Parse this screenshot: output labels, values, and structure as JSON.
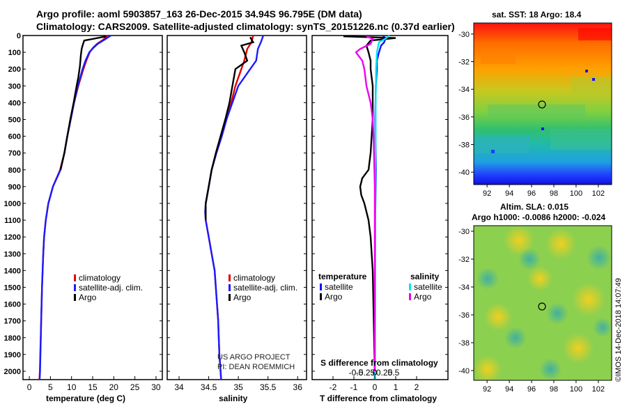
{
  "header": {
    "line1": "Argo profile: aoml 5903857_163 26-Dec-2015 34.94S 96.795E (DM data)",
    "line2": "Climatology: CARS2009. Satellite-adjusted climatology: synTS_20151226.nc (0.37d earlier)"
  },
  "colors": {
    "climatology": "#e00000",
    "satellite": "#1a1aff",
    "argo": "#000000",
    "sat_t": "#1010ff",
    "argo_t": "#000000",
    "sat_s": "#00e5ee",
    "argo_s": "#ee00ee"
  },
  "depth_axis": {
    "ylim": [
      0,
      2050
    ],
    "ticks": [
      0,
      100,
      200,
      300,
      400,
      500,
      600,
      700,
      800,
      900,
      1000,
      1100,
      1200,
      1300,
      1400,
      1500,
      1600,
      1700,
      1800,
      1900,
      2000
    ]
  },
  "panels": {
    "temperature": {
      "xlabel": "temperature (deg C)",
      "xlim": [
        -1.5,
        31.5
      ],
      "ticks": [
        0,
        5,
        10,
        15,
        20,
        25,
        30
      ],
      "legend": [
        {
          "key": "climatology",
          "label": "climatology"
        },
        {
          "key": "satellite",
          "label": "satellite-adj. clim."
        },
        {
          "key": "argo",
          "label": "Argo"
        }
      ]
    },
    "salinity": {
      "xlabel": "salinity",
      "xlim": [
        33.8,
        36.15
      ],
      "ticks": [
        "34",
        "34.5",
        "35",
        "35.5",
        "36"
      ],
      "legend": [
        {
          "key": "climatology",
          "label": "climatology"
        },
        {
          "key": "satellite",
          "label": "satellite-adj. clim."
        },
        {
          "key": "argo",
          "label": "Argo"
        }
      ],
      "credit1": "US ARGO PROJECT",
      "credit2": "PI: DEAN ROEMMICH"
    },
    "difference": {
      "xlabel": "T difference from climatology",
      "xlim": [
        -3,
        3.5
      ],
      "ticks": [
        "-2",
        "-1",
        "0",
        "1",
        "2"
      ],
      "s_label": "S difference from climatology",
      "s_ticks": [
        "-0.5",
        "-0.25",
        "0",
        "0.25",
        "0.5"
      ],
      "left_title": "temperature",
      "right_title": "salinity",
      "left_legend": [
        {
          "key": "sat_t",
          "label": "satellite"
        },
        {
          "key": "argo_t",
          "label": "Argo"
        }
      ],
      "right_legend": [
        {
          "key": "sat_s",
          "label": "satellite"
        },
        {
          "key": "argo_s",
          "label": "Argo"
        }
      ]
    }
  },
  "chart_data": [
    {
      "type": "line",
      "name": "temperature profile",
      "xlabel": "temperature (deg C)",
      "ylabel": "depth",
      "xlim": [
        -1.5,
        31.5
      ],
      "ylim": [
        2050,
        0
      ],
      "series": [
        {
          "name": "climatology",
          "y": [
            0,
            25,
            50,
            75,
            100,
            150,
            200,
            300,
            400,
            500,
            600,
            700,
            800,
            900,
            1000,
            1100,
            1200,
            1300,
            1500,
            1700,
            2000,
            2050
          ],
          "x": [
            18.5,
            17.5,
            16,
            15,
            14.3,
            13.5,
            12.8,
            11.6,
            10.6,
            9.8,
            9,
            8.3,
            7.3,
            5.6,
            4.5,
            3.9,
            3.5,
            3.3,
            3,
            2.8,
            2.5,
            2.4
          ]
        },
        {
          "name": "satellite-adj. clim.",
          "y": [
            0,
            25,
            50,
            75,
            100,
            150,
            200,
            300,
            400,
            500,
            600,
            700,
            800,
            900,
            1000,
            1100,
            1200,
            1300,
            1500,
            1700,
            2000,
            2050
          ],
          "x": [
            19.3,
            17.8,
            16.2,
            15.1,
            14.2,
            13.3,
            12.6,
            11.5,
            10.6,
            9.8,
            9,
            8.3,
            7.4,
            5.6,
            4.5,
            3.9,
            3.5,
            3.3,
            3,
            2.8,
            2.55,
            2.45
          ]
        },
        {
          "name": "Argo",
          "y": [
            5,
            30,
            45,
            60,
            80,
            120,
            180,
            250,
            300,
            400,
            500,
            600,
            700,
            800
          ],
          "x": [
            18.2,
            13,
            12.8,
            12.6,
            12.4,
            12.2,
            12.0,
            11.6,
            11.2,
            10.5,
            9.7,
            9,
            8.3,
            7.4
          ]
        }
      ]
    },
    {
      "type": "line",
      "name": "salinity profile",
      "xlabel": "salinity",
      "ylabel": "depth",
      "xlim": [
        33.8,
        36.15
      ],
      "ylim": [
        2050,
        0
      ],
      "series": [
        {
          "name": "climatology",
          "y": [
            0,
            40,
            80,
            150,
            200,
            300,
            400,
            500,
            600,
            700,
            800,
            900,
            1000,
            1050,
            1100,
            1200,
            1300,
            1400,
            1500,
            1600,
            1700,
            1800,
            1900,
            2000,
            2050
          ],
          "x": [
            35.25,
            35.22,
            35.15,
            35.1,
            35.05,
            34.95,
            34.88,
            34.8,
            34.72,
            34.63,
            34.55,
            34.5,
            34.45,
            34.44,
            34.45,
            34.5,
            34.55,
            34.6,
            34.62,
            34.64,
            34.66,
            34.67,
            34.68,
            34.7,
            34.71
          ]
        },
        {
          "name": "satellite-adj. clim.",
          "y": [
            0,
            40,
            80,
            150,
            200,
            300,
            400,
            500,
            600,
            700,
            800,
            900,
            1000,
            1050,
            1100,
            1200,
            1300,
            1400,
            1500,
            1600,
            1700,
            1800,
            1900,
            2000,
            2050
          ],
          "x": [
            35.42,
            35.38,
            35.33,
            35.3,
            35.2,
            35.0,
            34.9,
            34.8,
            34.72,
            34.63,
            34.55,
            34.5,
            34.45,
            34.44,
            34.45,
            34.5,
            34.55,
            34.6,
            34.62,
            34.64,
            34.66,
            34.67,
            34.68,
            34.7,
            34.71
          ]
        },
        {
          "name": "Argo",
          "y": [
            10,
            40,
            60,
            100,
            150,
            200,
            300,
            400,
            500,
            600,
            700,
            800,
            900,
            1000,
            1100
          ],
          "x": [
            35.2,
            35.25,
            35.05,
            35.1,
            35.15,
            34.95,
            34.9,
            34.85,
            34.78,
            34.7,
            34.62,
            34.55,
            34.5,
            34.45,
            34.45
          ]
        }
      ]
    },
    {
      "type": "line",
      "name": "difference from climatology",
      "xlabel": "T difference from climatology",
      "ylabel": "depth",
      "xlim": [
        -3,
        3.5
      ],
      "ylim": [
        2050,
        0
      ],
      "series": [
        {
          "name": "satellite (temperature)",
          "y": [
            0,
            20,
            40,
            60,
            100,
            150,
            200,
            300,
            500,
            800,
            1100,
            1500,
            2000,
            2050
          ],
          "x": [
            0.4,
            0.5,
            0.45,
            0.3,
            0.2,
            0.1,
            0.1,
            0.05,
            0.02,
            0.05,
            0.02,
            0.01,
            0.0,
            0.0
          ]
        },
        {
          "name": "Argo (temperature)",
          "y": [
            5,
            15,
            30,
            60,
            100,
            150,
            200,
            300,
            500,
            700,
            800,
            850,
            900,
            950,
            1000,
            1100,
            1200,
            1400,
            1700,
            2000
          ],
          "x": [
            -1.5,
            1.0,
            -0.2,
            -0.4,
            -0.3,
            -0.2,
            -0.2,
            -0.1,
            -0.1,
            -0.2,
            -0.3,
            -0.6,
            -0.7,
            -0.65,
            -0.5,
            -0.3,
            -0.2,
            -0.1,
            -0.05,
            0.0
          ]
        },
        {
          "name": "satellite (salinity)",
          "y": [
            0,
            20,
            40,
            100,
            200,
            400,
            600,
            800,
            1200,
            1600,
            2000,
            2050
          ],
          "x": [
            0.35,
            0.25,
            0.1,
            0.05,
            0.03,
            0.02,
            0.02,
            0.01,
            0.01,
            0.01,
            0.0,
            0.0
          ]
        },
        {
          "name": "Argo (salinity)",
          "y": [
            5,
            20,
            50,
            80,
            100,
            150,
            200,
            300,
            400,
            500,
            600,
            700,
            900,
            1200,
            1600,
            2000
          ],
          "x": [
            -0.2,
            -0.05,
            -0.1,
            -0.35,
            -0.45,
            -0.3,
            -0.25,
            -0.2,
            -0.1,
            -0.05,
            -0.03,
            -0.02,
            0.0,
            0.0,
            0.0,
            0.0
          ]
        }
      ]
    }
  ],
  "maps": {
    "sst": {
      "title": "sat. SST: 18 Argo: 18.4",
      "yticks": [
        "-30",
        "-32",
        "-34",
        "-36",
        "-38",
        "-40"
      ],
      "xticks": [
        "92",
        "94",
        "96",
        "98",
        "100",
        "102"
      ]
    },
    "sla": {
      "title1": "Altim. SLA: 0.015",
      "title2": "Argo h1000: -0.0086 h2000: -0.024",
      "yticks": [
        "-30",
        "-32",
        "-34",
        "-36",
        "-38",
        "-40"
      ],
      "xticks": [
        "92",
        "94",
        "96",
        "98",
        "100",
        "102"
      ]
    }
  },
  "footer": {
    "imos_stamp": "©IMOS 14-Dec-2018 14:07:49"
  }
}
